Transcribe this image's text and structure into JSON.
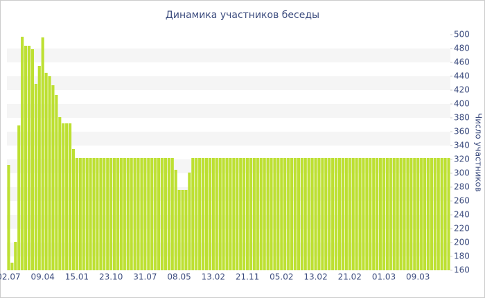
{
  "chart_data": {
    "type": "bar",
    "title": "Динамика участников беседы",
    "y_axis_label": "Число участников",
    "categories": [
      "02.07",
      null,
      null,
      null,
      null,
      null,
      null,
      null,
      null,
      null,
      "09.04",
      null,
      null,
      null,
      null,
      null,
      null,
      null,
      null,
      null,
      "15.01",
      null,
      null,
      null,
      null,
      null,
      null,
      null,
      null,
      null,
      "23.10",
      null,
      null,
      null,
      null,
      null,
      null,
      null,
      null,
      null,
      "31.07",
      null,
      null,
      null,
      null,
      null,
      null,
      null,
      null,
      null,
      "08.05",
      null,
      null,
      null,
      null,
      null,
      null,
      null,
      null,
      null,
      "13.02",
      null,
      null,
      null,
      null,
      null,
      null,
      null,
      null,
      null,
      "21.11",
      null,
      null,
      null,
      null,
      null,
      null,
      null,
      null,
      null,
      "05.02",
      null,
      null,
      null,
      null,
      null,
      null,
      null,
      null,
      null,
      "13.02",
      null,
      null,
      null,
      null,
      null,
      null,
      null,
      null,
      null,
      "21.02",
      null,
      null,
      null,
      null,
      null,
      null,
      null,
      null,
      null,
      "01.03",
      null,
      null,
      null,
      null,
      null,
      null,
      null,
      null,
      null,
      "09.03",
      null,
      null,
      null,
      null,
      null,
      null,
      null,
      null,
      null
    ],
    "values": [
      312,
      171,
      201,
      369,
      497,
      484,
      484,
      479,
      429,
      455,
      496,
      445,
      440,
      427,
      413,
      381,
      372,
      372,
      372,
      335,
      322,
      322,
      322,
      322,
      322,
      322,
      322,
      322,
      322,
      322,
      322,
      322,
      322,
      322,
      322,
      322,
      322,
      322,
      322,
      322,
      322,
      322,
      322,
      322,
      322,
      322,
      322,
      322,
      322,
      305,
      276,
      276,
      276,
      301,
      322,
      322,
      322,
      322,
      322,
      322,
      322,
      322,
      322,
      322,
      322,
      322,
      322,
      322,
      322,
      322,
      322,
      322,
      322,
      322,
      322,
      322,
      322,
      322,
      322,
      322,
      322,
      322,
      322,
      322,
      322,
      322,
      322,
      322,
      322,
      322,
      322,
      322,
      322,
      322,
      322,
      322,
      322,
      322,
      322,
      322,
      322,
      322,
      322,
      322,
      322,
      322,
      322,
      322,
      322,
      322,
      322,
      322,
      322,
      322,
      322,
      322,
      322,
      322,
      322,
      322,
      322,
      322,
      322,
      322,
      322,
      322,
      322,
      322,
      322,
      322
    ],
    "color": "#bde032",
    "ylim": [
      160,
      500
    ],
    "yticks": [
      160,
      180,
      200,
      220,
      240,
      260,
      280,
      300,
      320,
      340,
      360,
      380,
      400,
      420,
      440,
      460,
      480,
      500
    ],
    "grid": true
  }
}
